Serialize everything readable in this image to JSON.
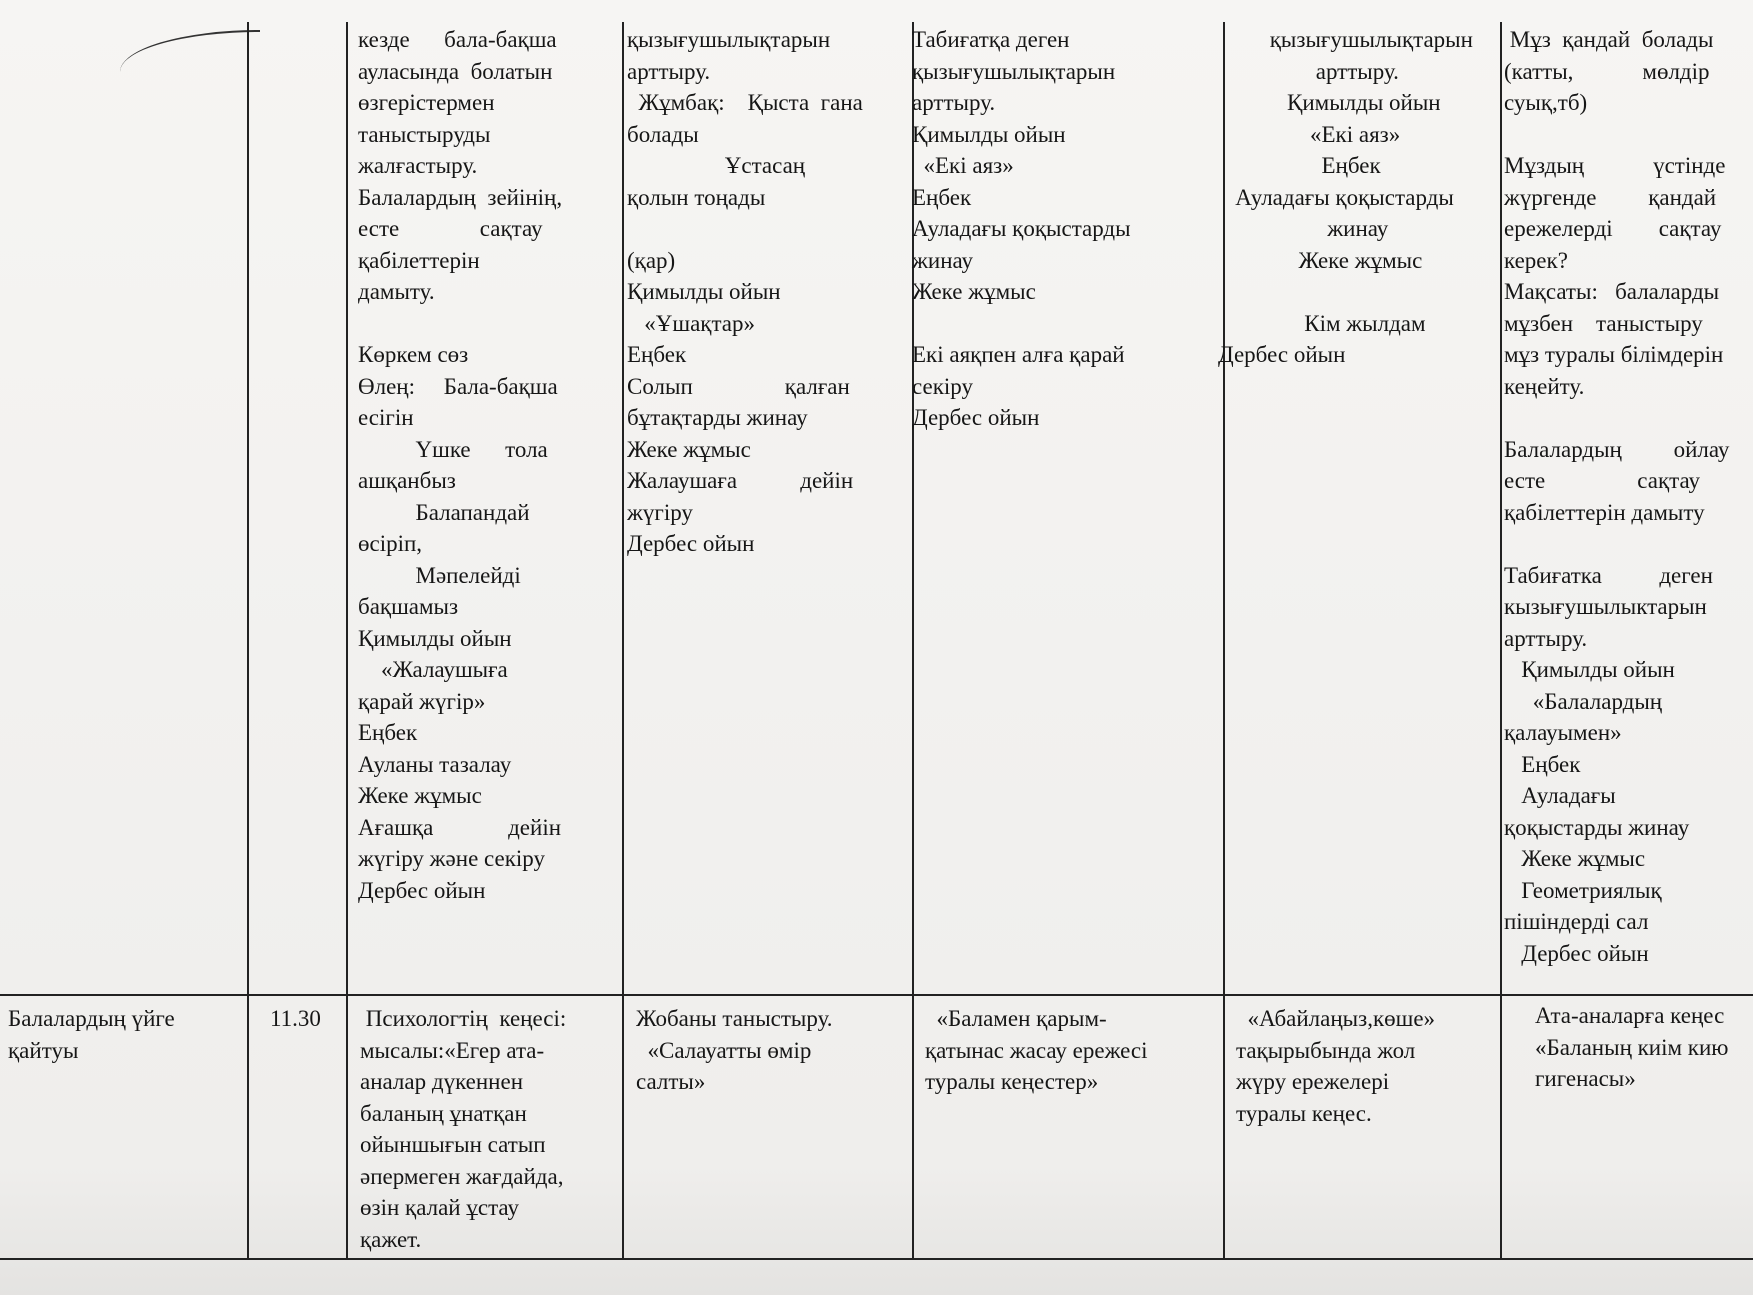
{
  "table": {
    "row1": {
      "col1": [
        "кезде      бала-бақша",
        "ауласында  болатын",
        "өзгерістермен",
        "таныстыруды",
        "жалғастыру.",
        "Балалардың  зейінің,",
        "есте              сақтау",
        "қабілеттерін",
        "дамыту.",
        "",
        "Көркем сөз",
        "Өлең:     Бала-бақша",
        "есігін",
        "          Үшке      тола",
        "ашқанбыз",
        "          Балапандай",
        "өсіріп,",
        "          Мәпелейді",
        "бақшамыз",
        "Қимылды ойын",
        "    «Жалаушыға",
        "қарай жүгір»",
        "Еңбек",
        "Ауланы тазалау",
        "Жеке жұмыс",
        "Ағашқа             дейін",
        "жүгіру және секіру",
        "Дербес ойын"
      ],
      "col2": [
        "қызығушылықтарын",
        "арттыру.",
        "  Жұмбақ:    Қыста  гана",
        "болады",
        "                 Ұстасаң",
        "қолын тоңады",
        "",
        "(қар)",
        "Қимылды ойын",
        "   «Ұшақтар»",
        "Еңбек",
        "Солып                қалған",
        "бұтақтарды жинау",
        "Жеке жұмыс",
        "Жалаушаға           дейін",
        "жүгіру",
        "Дербес ойын"
      ],
      "col3": [
        "Табиғатқа деген",
        "қызығушылықтарын",
        "арттыру.",
        "Қимылды ойын",
        "  «Екі аяз»",
        "Еңбек",
        "Ауладағы қоқыстарды",
        "жинау",
        "Жеке жұмыс",
        "",
        "Екі аяқпен алға қарай",
        "секіру",
        "Дербес ойын"
      ],
      "col4": [
        "         қызығушылықтарын",
        "                 арттыру.",
        "            Қимылды ойын",
        "                «Екі аяз»",
        "                  Еңбек",
        "   Ауладағы қоқыстарды",
        "                   жинау",
        "              Жеке жұмыс",
        "",
        "               Кім жылдам",
        "Дербес ойын"
      ],
      "col5": [
        " Мұз  қандай  болады",
        "(катты,            мөлдір",
        "суық,тб)",
        "",
        "Мұздың            үстінде",
        "жүргенде         қандай",
        "ережелерді        сақтау",
        "керек?",
        "Мақсаты:   балаларды",
        "мұзбен    таныстыру",
        "мұз туралы білімдерін",
        "кеңейту.",
        "",
        "Балалардың         ойлау",
        "есте                сақтау",
        "қабілеттерін дамыту",
        "",
        "Табиғатка          деген",
        "кызығушылыктарын",
        "арттыру.",
        "   Қимылды ойын",
        "     «Балалардың",
        "қалауымен»",
        "   Еңбек",
        "   Ауладағы",
        "қоқыстарды жинау",
        "   Жеке жұмыс",
        "   Геометриялық",
        "пішіндерді сал",
        "   Дербес ойын"
      ]
    },
    "row2": {
      "label": [
        "Балалардың үйге",
        "қайтуы"
      ],
      "time": "11.30",
      "col1": [
        " Психологтің  кеңесі:",
        "мысалы:«Егер ата-",
        "аналар дүкеннен",
        "баланың ұнатқан",
        "ойыншығын сатып",
        "әпермеген жағдайда,",
        "өзін қалай ұстау",
        "қажет."
      ],
      "col2": [
        "Жобаны таныстыру.",
        "  «Салауатты өмір",
        "салты»"
      ],
      "col3": [
        "  «Баламен қарым-",
        "қатынас жасау ережесі",
        "туралы кеңестер»"
      ],
      "col4": [
        "  «Абайлаңыз,көше»",
        "тақырыбында жол",
        "жүру ережелері",
        "туралы кеңес."
      ],
      "col5": [
        "Ата-аналарға кеңес",
        "«Баланың киім кию",
        "гигенасы»"
      ]
    }
  }
}
